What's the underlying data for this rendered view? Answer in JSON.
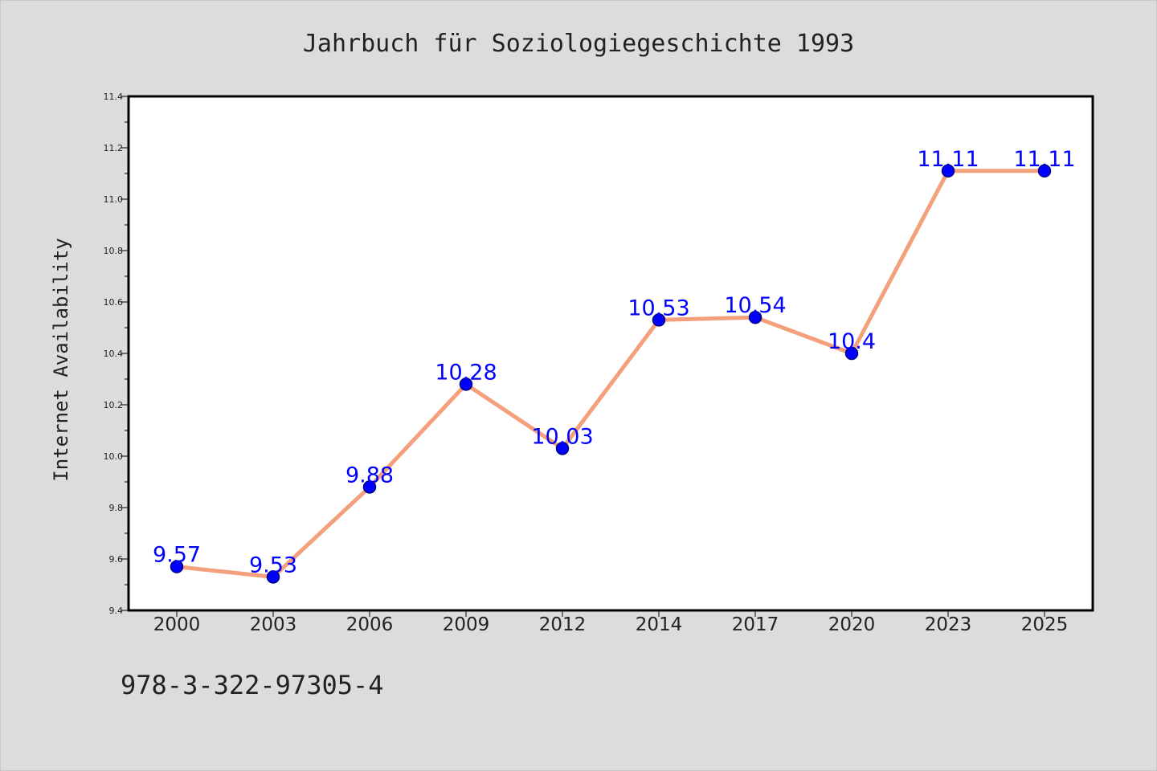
{
  "chart_data": {
    "type": "line",
    "title": "Jahrbuch für Soziologiegeschichte 1993",
    "xlabel": "",
    "ylabel": "Internet Availability",
    "categories": [
      "2000",
      "2003",
      "2006",
      "2009",
      "2012",
      "2014",
      "2017",
      "2020",
      "2023",
      "2025"
    ],
    "series": [
      {
        "values": [
          9.57,
          9.53,
          9.88,
          10.28,
          10.03,
          10.53,
          10.54,
          10.4,
          11.11,
          11.11
        ],
        "labels": [
          "9.57",
          "9.53",
          "9.88",
          "10.28",
          "10.03",
          "10.53",
          "10.54",
          "10.4",
          "11.11",
          "11.11"
        ]
      }
    ],
    "ylim": [
      9.4,
      11.4
    ],
    "yticks": [
      "9.4",
      "9.6",
      "9.8",
      "10.0",
      "10.2",
      "10.4",
      "10.6",
      "10.8",
      "11.0",
      "11.2",
      "11.4"
    ],
    "grid": false,
    "legend": "none",
    "colors": {
      "line": "#f4a07c",
      "marker": "#0000ff",
      "marker_edge": "#000080",
      "data_label": "#0000ff",
      "background": "#dcdcdc",
      "plot_background": "#ffffff",
      "axes": "#000000"
    }
  },
  "footnote": "978-3-322-97305-4"
}
